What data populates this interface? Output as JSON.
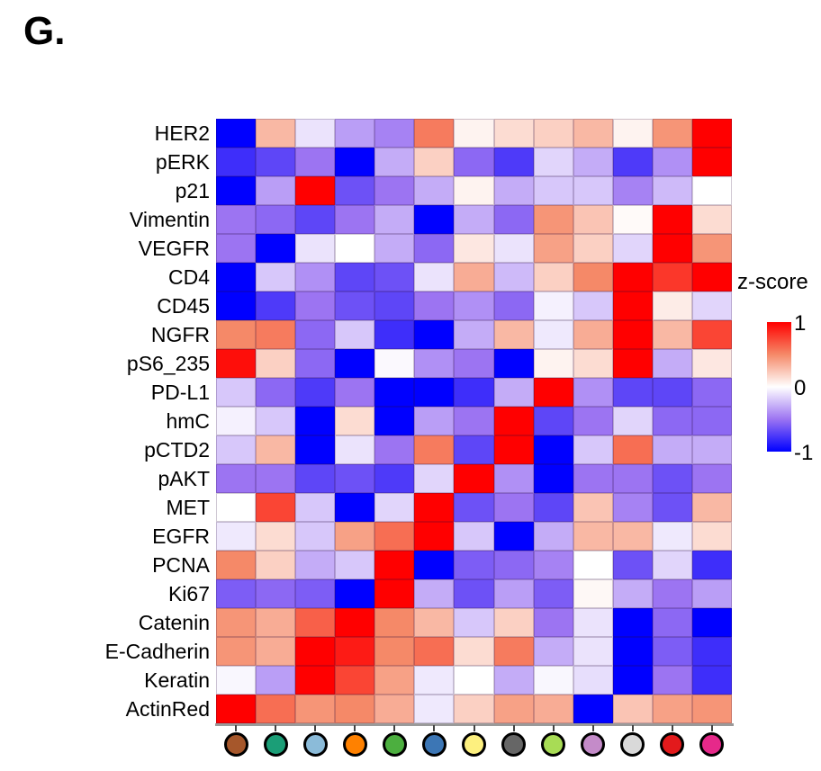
{
  "panel_label": "G.",
  "chart_data": {
    "type": "heatmap",
    "title": "",
    "xlabel": "",
    "ylabel": "",
    "grid": "thin dark cell edges",
    "legend_position": "right",
    "rows": [
      "HER2",
      "pERK",
      "p21",
      "Vimentin",
      "VEGFR",
      "CD4",
      "CD45",
      "NGFR",
      "pS6_235",
      "PD-L1",
      "hmC",
      "pCTD2",
      "pAKT",
      "MET",
      "EGFR",
      "PCNA",
      "Ki67",
      "Catenin",
      "E-Cadherin",
      "Keratin",
      "ActinRed"
    ],
    "columns": [
      {
        "name": "brown-dot",
        "color": "#a6572b"
      },
      {
        "name": "teal-dot",
        "color": "#1b9e77"
      },
      {
        "name": "light-blue-dot",
        "color": "#8bbbd9"
      },
      {
        "name": "orange-dot",
        "color": "#ff8100"
      },
      {
        "name": "green-dot",
        "color": "#4caf3f"
      },
      {
        "name": "blue-dot",
        "color": "#3c76b5"
      },
      {
        "name": "pale-yellow-dot",
        "color": "#fdf07f"
      },
      {
        "name": "dark-gray-dot",
        "color": "#666666"
      },
      {
        "name": "yellow-green-dot",
        "color": "#a8dc55"
      },
      {
        "name": "orchid-dot",
        "color": "#c48bc9"
      },
      {
        "name": "light-gray-dot",
        "color": "#d9d9d9"
      },
      {
        "name": "red-dot",
        "color": "#e31a1c"
      },
      {
        "name": "magenta-dot",
        "color": "#e6298a"
      }
    ],
    "values": [
      [
        -1,
        0.3,
        -0.1,
        -0.35,
        -0.45,
        0.55,
        0.05,
        0.15,
        0.2,
        0.3,
        0.05,
        0.45,
        1
      ],
      [
        -0.8,
        -0.7,
        -0.5,
        -1,
        -0.3,
        0.2,
        -0.55,
        -0.75,
        -0.15,
        -0.3,
        -0.75,
        -0.4,
        1
      ],
      [
        -1,
        -0.35,
        1,
        -0.65,
        -0.5,
        -0.3,
        0.05,
        -0.3,
        -0.2,
        -0.2,
        -0.45,
        -0.25,
        0
      ],
      [
        -0.5,
        -0.55,
        -0.7,
        -0.5,
        -0.3,
        -1,
        -0.3,
        -0.55,
        0.45,
        0.25,
        0.02,
        1,
        0.15
      ],
      [
        -0.5,
        -1,
        -0.1,
        0,
        -0.3,
        -0.55,
        0.1,
        -0.1,
        0.4,
        0.2,
        -0.15,
        1,
        0.45
      ],
      [
        -1,
        -0.2,
        -0.4,
        -0.7,
        -0.65,
        -0.1,
        0.35,
        -0.25,
        0.2,
        0.5,
        1,
        0.8,
        1
      ],
      [
        -1,
        -0.75,
        -0.5,
        -0.65,
        -0.7,
        -0.5,
        -0.4,
        -0.55,
        -0.05,
        -0.2,
        1,
        0.08,
        -0.15
      ],
      [
        0.5,
        0.55,
        -0.55,
        -0.2,
        -0.8,
        -1,
        -0.3,
        0.3,
        -0.08,
        0.35,
        1,
        0.3,
        0.75
      ],
      [
        0.95,
        0.2,
        -0.55,
        -1,
        -0.02,
        -0.4,
        -0.5,
        -1,
        0.05,
        0.15,
        1,
        -0.3,
        0.1
      ],
      [
        -0.2,
        -0.55,
        -0.75,
        -0.5,
        -1,
        -1,
        -0.8,
        -0.3,
        1,
        -0.4,
        -0.7,
        -0.7,
        -0.55
      ],
      [
        -0.05,
        -0.2,
        -1,
        0.15,
        -1,
        -0.35,
        -0.5,
        1,
        -0.7,
        -0.5,
        -0.15,
        -0.55,
        -0.55
      ],
      [
        -0.2,
        0.3,
        -1,
        -0.1,
        -0.5,
        0.55,
        -0.7,
        1,
        -1,
        -0.2,
        0.6,
        -0.3,
        -0.3
      ],
      [
        -0.5,
        -0.5,
        -0.7,
        -0.65,
        -0.75,
        -0.15,
        1,
        -0.4,
        -1,
        -0.5,
        -0.5,
        -0.65,
        -0.5
      ],
      [
        0,
        0.75,
        -0.2,
        -1,
        -0.15,
        1,
        -0.65,
        -0.5,
        -0.7,
        0.25,
        -0.45,
        -0.65,
        0.3
      ],
      [
        -0.08,
        0.15,
        -0.2,
        0.4,
        0.6,
        1,
        -0.2,
        -1,
        -0.3,
        0.3,
        0.3,
        -0.08,
        0.15
      ],
      [
        0.5,
        0.2,
        -0.3,
        -0.2,
        1,
        -1,
        -0.6,
        -0.55,
        -0.45,
        0,
        -0.65,
        -0.15,
        -0.8
      ],
      [
        -0.6,
        -0.55,
        -0.6,
        -1,
        1,
        -0.3,
        -0.65,
        -0.35,
        -0.6,
        0.03,
        -0.3,
        -0.5,
        -0.35
      ],
      [
        0.45,
        0.35,
        0.65,
        1,
        0.5,
        0.3,
        -0.2,
        0.2,
        -0.5,
        -0.1,
        -1,
        -0.55,
        -1
      ],
      [
        0.45,
        0.35,
        1,
        0.9,
        0.5,
        0.6,
        0.15,
        0.55,
        -0.3,
        -0.1,
        -1,
        -0.6,
        -0.8
      ],
      [
        -0.03,
        -0.35,
        1,
        0.75,
        0.4,
        -0.08,
        0,
        -0.3,
        -0.03,
        -0.12,
        -1,
        -0.5,
        -0.8
      ],
      [
        1,
        0.6,
        0.45,
        0.5,
        0.35,
        -0.08,
        0.2,
        0.4,
        0.35,
        -1,
        0.25,
        0.4,
        0.45
      ]
    ],
    "colorscale": {
      "title": "z-score",
      "ticks": [
        {
          "label": "1",
          "value": 1
        },
        {
          "label": "0",
          "value": 0
        },
        {
          "label": "-1",
          "value": -1
        }
      ],
      "range": [
        -1,
        1
      ],
      "stops": [
        {
          "z": -1,
          "color": "#0000ff"
        },
        {
          "z": -0.5,
          "color": "#9c74f2"
        },
        {
          "z": 0,
          "color": "#ffffff"
        },
        {
          "z": 0.5,
          "color": "#f58968"
        },
        {
          "z": 1,
          "color": "#ff0000"
        }
      ]
    }
  }
}
